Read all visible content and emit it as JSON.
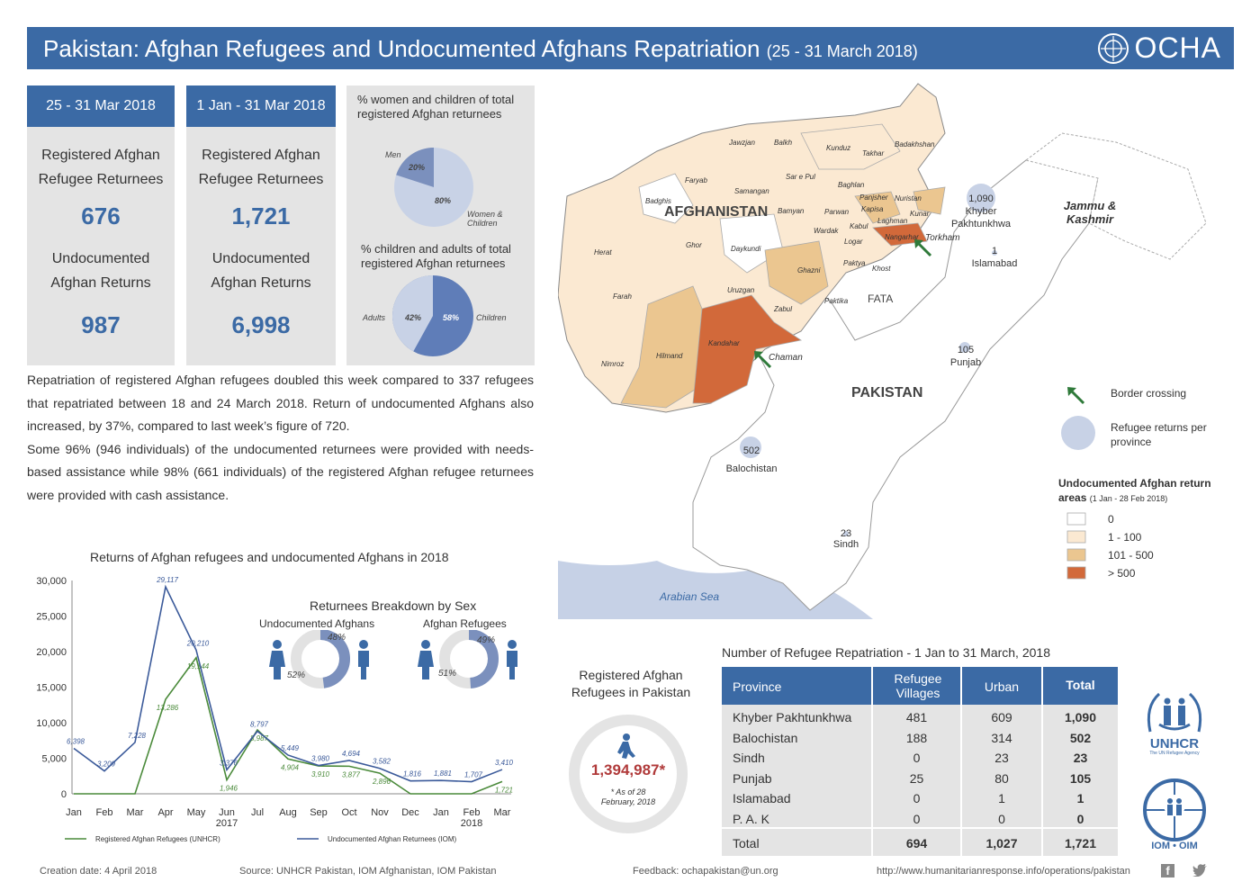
{
  "header": {
    "title": "Pakistan: Afghan Refugees and Undocumented Afghans Repatriation",
    "period": "(25 - 31 March 2018)",
    "org": "OCHA"
  },
  "cards": [
    {
      "period": "25 - 31 Mar 2018",
      "label1": "Registered Afghan Refugee Returnees",
      "value1": "676",
      "label2": "Undocumented Afghan Returns",
      "value2": "987"
    },
    {
      "period": "1 Jan - 31 Mar 2018",
      "label1": "Registered Afghan Refugee Returnees",
      "value1": "1,721",
      "label2": "Undocumented Afghan Returns",
      "value2": "6,998"
    }
  ],
  "pies": {
    "women_title": "% women and children of total registered Afghan returnees",
    "men_label": "Men",
    "men_pct": "20%",
    "women_pct": "80%",
    "women_label": "Women & Children",
    "men_value": 20,
    "children_title": "% children and adults of total registered Afghan returnees",
    "adults_label": "Adults",
    "adults_pct": "42%",
    "children_pct": "58%",
    "children_label": "Children",
    "adults_value": 42
  },
  "summary": {
    "p1": "Repatriation of registered Afghan refugees doubled this week compared to 337 refugees that repatriated between 18 and 24 March 2018. Return of undocumented Afghans also increased, by 37%, compared to last week’s figure of 720.",
    "p2": "Some 96% (946 individuals) of the undocumented returnees were provided with needs-based assistance while 98% (661 individuals) of the registered Afghan refugee returnees were provided with cash assistance."
  },
  "chart_data": {
    "type": "line",
    "title": "Returns of Afghan refugees and undocumented Afghans in 2018",
    "x_ticks": [
      "Jan",
      "Feb",
      "Mar",
      "Apr",
      "May",
      "Jun",
      "Jul",
      "Aug",
      "Sep",
      "Oct",
      "Nov",
      "Dec",
      "Jan",
      "Feb",
      "Mar"
    ],
    "x_year_labels": [
      {
        "index": 5,
        "year": "2017"
      },
      {
        "index": 13,
        "year": "2018"
      }
    ],
    "y_ticks": [
      "30,000",
      "25,000",
      "20,000",
      "15,000",
      "10,000",
      "5,000",
      "0"
    ],
    "ylim": [
      0,
      30000
    ],
    "series": [
      {
        "name": "Registered Afghan Refugees (UNHCR)",
        "color": "#4a8a3a",
        "values": [
          0,
          0,
          0,
          13286,
          19144,
          1946,
          8987,
          4904,
          3910,
          3877,
          2896,
          0,
          0,
          0,
          1721
        ],
        "labels": [
          "",
          "",
          "",
          "13,286",
          "19,144",
          "1,946",
          "8,987",
          "4,904",
          "3,910",
          "3,877",
          "2,896",
          "",
          "",
          "",
          "1,721"
        ]
      },
      {
        "name": "Undocumented Afghan Returnees (IOM)",
        "color": "#3b5a9a",
        "values": [
          6398,
          3209,
          7228,
          29117,
          20210,
          3376,
          8797,
          5449,
          3980,
          4694,
          3582,
          1816,
          1881,
          1707,
          3410
        ],
        "labels": [
          "6,398",
          "3,209",
          "7,228",
          "29,117",
          "20,210",
          "3,376",
          "8,797",
          "5,449",
          "3,980",
          "4,694",
          "3,582",
          "1,816",
          "1,881",
          "1,707",
          "3,410"
        ]
      }
    ]
  },
  "sex": {
    "title": "Returnees Breakdown by Sex",
    "undoc_label": "Undocumented Afghans",
    "undoc_f": "48%",
    "undoc_m": "52%",
    "undoc_f_value": 48,
    "ref_label": "Afghan Refugees",
    "ref_f": "49%",
    "ref_m": "51%",
    "ref_f_value": 49
  },
  "map": {
    "afghanistan": "AFGHANISTAN",
    "pakistan": "PAKISTAN",
    "jk": "Jammu & Kashmir",
    "sea": "Arabian Sea",
    "provinces_af": [
      "Jawzjan",
      "Balkh",
      "Kunduz",
      "Takhar",
      "Badakhshan",
      "Faryab",
      "Samangan",
      "Sar e Pul",
      "Baghlan",
      "Badghis",
      "Bamyan",
      "Panjsher",
      "Nuristan",
      "Parwan",
      "Kapisa",
      "Kunar",
      "Laghman",
      "Wardak",
      "Kabul",
      "Logar",
      "Nangarhar",
      "Herat",
      "Ghor",
      "Daykundi",
      "Ghazni",
      "Paktya",
      "Khost",
      "Uruzgan",
      "Farah",
      "Zabul",
      "Paktika",
      "Kandahar",
      "Hilmand",
      "Nimroz"
    ],
    "crossings": [
      "Torkham",
      "Chaman"
    ],
    "returns": [
      {
        "province": "Khyber Pakhtunkhwa",
        "value": "1,090"
      },
      {
        "province": "Islamabad",
        "value": "1"
      },
      {
        "province": "Punjab",
        "value": "105"
      },
      {
        "province": "Balochistan",
        "value": "502"
      },
      {
        "province": "Sindh",
        "value": "23"
      }
    ],
    "fata": "FATA",
    "legend": {
      "border": "Border crossing",
      "returns": "Refugee returns per province",
      "areas_title": "Undocumented Afghan return areas",
      "areas_sub": "(1 Jan - 28 Feb 2018)",
      "bins": [
        {
          "label": "0",
          "color": "#ffffff"
        },
        {
          "label": "1 - 100",
          "color": "#fbe9d2"
        },
        {
          "label": "101 - 500",
          "color": "#ebc690"
        },
        {
          "label": "> 500",
          "color": "#d2693a"
        }
      ]
    }
  },
  "registered": {
    "label": "Registered Afghan Refugees in Pakistan",
    "value": "1,394,987*",
    "note": "* As of 28 February, 2018"
  },
  "table": {
    "title": "Number of Refugee Repatriation -  1 Jan to 31 March, 2018",
    "headers": [
      "Province",
      "Refugee Villages",
      "Urban",
      "Total"
    ],
    "rows": [
      [
        "Khyber Pakhtunkhwa",
        "481",
        "609",
        "1,090"
      ],
      [
        "Balochistan",
        "188",
        "314",
        "502"
      ],
      [
        "Sindh",
        "0",
        "23",
        "23"
      ],
      [
        "Punjab",
        "25",
        "80",
        "105"
      ],
      [
        "Islamabad",
        "0",
        "1",
        "1"
      ],
      [
        "P. A. K",
        "0",
        "0",
        "0"
      ]
    ],
    "total": [
      "Total",
      "694",
      "1,027",
      "1,721"
    ]
  },
  "logos": {
    "unhcr": "UNHCR",
    "unhcr_sub": "The UN Refugee Agency",
    "iom": "IOM • OIM"
  },
  "footer": {
    "creation": "Creation date:  4 April 2018",
    "source": "Source:  UNHCR Pakistan, IOM Afghanistan, IOM Pakistan",
    "feedback": "Feedback: ochapakistan@un.org",
    "url": "http://www.humanitarianresponse.info/operations/pakistan"
  }
}
